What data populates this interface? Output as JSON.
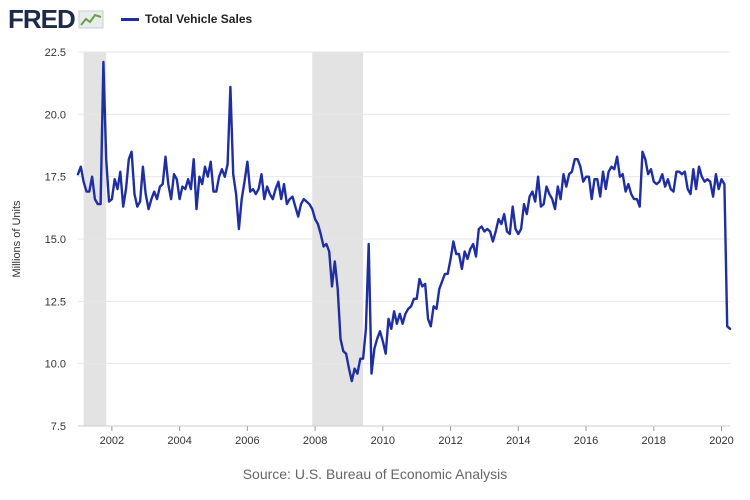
{
  "header": {
    "logo_text": "FRED"
  },
  "colors": {
    "series": "#1f2ea3",
    "recession": "#e3e3e3",
    "grid": "#e6e6e6",
    "axis_text": "#333333"
  },
  "footer": {
    "source": "Source: U.S. Bureau of Economic Analysis"
  },
  "chart_data": {
    "type": "line",
    "title": "",
    "xlabel": "",
    "ylabel": "Millions of Units",
    "ylim": [
      7.5,
      22.5
    ],
    "xlim": [
      "2001-01",
      "2020-04"
    ],
    "yticks": [
      "7.5",
      "10.0",
      "12.5",
      "15.0",
      "17.5",
      "20.0",
      "22.5"
    ],
    "xticks": [
      "2002",
      "2004",
      "2006",
      "2008",
      "2010",
      "2012",
      "2014",
      "2016",
      "2018",
      "2020"
    ],
    "grid": true,
    "legend": "top-left",
    "recessions": [
      {
        "start": "2001-03",
        "end": "2001-11"
      },
      {
        "start": "2007-12",
        "end": "2009-06"
      }
    ],
    "series": [
      {
        "name": "Total Vehicle Sales",
        "points": [
          [
            "2001-01",
            17.6
          ],
          [
            "2001-02",
            17.9
          ],
          [
            "2001-03",
            17.3
          ],
          [
            "2001-04",
            16.9
          ],
          [
            "2001-05",
            16.9
          ],
          [
            "2001-06",
            17.5
          ],
          [
            "2001-07",
            16.6
          ],
          [
            "2001-08",
            16.4
          ],
          [
            "2001-09",
            16.4
          ],
          [
            "2001-10",
            22.1
          ],
          [
            "2001-11",
            18.2
          ],
          [
            "2001-12",
            16.5
          ],
          [
            "2002-01",
            16.6
          ],
          [
            "2002-02",
            17.4
          ],
          [
            "2002-03",
            17.0
          ],
          [
            "2002-04",
            17.7
          ],
          [
            "2002-05",
            16.3
          ],
          [
            "2002-06",
            17.0
          ],
          [
            "2002-07",
            18.2
          ],
          [
            "2002-08",
            18.5
          ],
          [
            "2002-09",
            16.8
          ],
          [
            "2002-10",
            16.3
          ],
          [
            "2002-11",
            16.5
          ],
          [
            "2002-12",
            17.9
          ],
          [
            "2003-01",
            16.8
          ],
          [
            "2003-02",
            16.2
          ],
          [
            "2003-03",
            16.6
          ],
          [
            "2003-04",
            16.9
          ],
          [
            "2003-05",
            16.6
          ],
          [
            "2003-06",
            17.1
          ],
          [
            "2003-07",
            17.2
          ],
          [
            "2003-08",
            18.3
          ],
          [
            "2003-09",
            17.2
          ],
          [
            "2003-10",
            16.6
          ],
          [
            "2003-11",
            17.6
          ],
          [
            "2003-12",
            17.4
          ],
          [
            "2004-01",
            16.6
          ],
          [
            "2004-02",
            17.1
          ],
          [
            "2004-03",
            17.0
          ],
          [
            "2004-04",
            17.4
          ],
          [
            "2004-05",
            17.0
          ],
          [
            "2004-06",
            18.2
          ],
          [
            "2004-07",
            16.2
          ],
          [
            "2004-08",
            17.5
          ],
          [
            "2004-09",
            17.2
          ],
          [
            "2004-10",
            17.9
          ],
          [
            "2004-11",
            17.5
          ],
          [
            "2004-12",
            18.1
          ],
          [
            "2005-01",
            16.9
          ],
          [
            "2005-02",
            16.9
          ],
          [
            "2005-03",
            17.5
          ],
          [
            "2005-04",
            17.8
          ],
          [
            "2005-05",
            17.5
          ],
          [
            "2005-06",
            18.0
          ],
          [
            "2005-07",
            21.1
          ],
          [
            "2005-08",
            17.6
          ],
          [
            "2005-09",
            16.8
          ],
          [
            "2005-10",
            15.4
          ],
          [
            "2005-11",
            16.6
          ],
          [
            "2005-12",
            17.3
          ],
          [
            "2006-01",
            18.1
          ],
          [
            "2006-02",
            16.9
          ],
          [
            "2006-03",
            17.0
          ],
          [
            "2006-04",
            16.8
          ],
          [
            "2006-05",
            17.0
          ],
          [
            "2006-06",
            17.6
          ],
          [
            "2006-07",
            16.6
          ],
          [
            "2006-08",
            17.1
          ],
          [
            "2006-09",
            16.8
          ],
          [
            "2006-10",
            16.6
          ],
          [
            "2006-11",
            17.0
          ],
          [
            "2006-12",
            17.3
          ],
          [
            "2007-01",
            16.6
          ],
          [
            "2007-02",
            17.2
          ],
          [
            "2007-03",
            16.4
          ],
          [
            "2007-04",
            16.6
          ],
          [
            "2007-05",
            16.7
          ],
          [
            "2007-06",
            16.3
          ],
          [
            "2007-07",
            15.9
          ],
          [
            "2007-08",
            16.4
          ],
          [
            "2007-09",
            16.6
          ],
          [
            "2007-10",
            16.5
          ],
          [
            "2007-11",
            16.4
          ],
          [
            "2007-12",
            16.2
          ],
          [
            "2008-01",
            15.8
          ],
          [
            "2008-02",
            15.6
          ],
          [
            "2008-03",
            15.2
          ],
          [
            "2008-04",
            14.7
          ],
          [
            "2008-05",
            14.8
          ],
          [
            "2008-06",
            14.5
          ],
          [
            "2008-07",
            13.1
          ],
          [
            "2008-08",
            14.1
          ],
          [
            "2008-09",
            13.0
          ],
          [
            "2008-10",
            11.0
          ],
          [
            "2008-11",
            10.5
          ],
          [
            "2008-12",
            10.4
          ],
          [
            "2009-01",
            9.8
          ],
          [
            "2009-02",
            9.3
          ],
          [
            "2009-03",
            9.8
          ],
          [
            "2009-04",
            9.6
          ],
          [
            "2009-05",
            10.2
          ],
          [
            "2009-06",
            10.2
          ],
          [
            "2009-07",
            11.4
          ],
          [
            "2009-08",
            14.8
          ],
          [
            "2009-09",
            9.6
          ],
          [
            "2009-10",
            10.6
          ],
          [
            "2009-11",
            11.0
          ],
          [
            "2009-12",
            11.3
          ],
          [
            "2010-01",
            10.9
          ],
          [
            "2010-02",
            10.4
          ],
          [
            "2010-03",
            11.8
          ],
          [
            "2010-04",
            11.4
          ],
          [
            "2010-05",
            12.1
          ],
          [
            "2010-06",
            11.6
          ],
          [
            "2010-07",
            12.0
          ],
          [
            "2010-08",
            11.6
          ],
          [
            "2010-09",
            12.0
          ],
          [
            "2010-10",
            12.2
          ],
          [
            "2010-11",
            12.3
          ],
          [
            "2010-12",
            12.6
          ],
          [
            "2011-01",
            12.6
          ],
          [
            "2011-02",
            13.4
          ],
          [
            "2011-03",
            13.1
          ],
          [
            "2011-04",
            13.2
          ],
          [
            "2011-05",
            11.8
          ],
          [
            "2011-06",
            11.5
          ],
          [
            "2011-07",
            12.3
          ],
          [
            "2011-08",
            12.2
          ],
          [
            "2011-09",
            13.0
          ],
          [
            "2011-10",
            13.3
          ],
          [
            "2011-11",
            13.6
          ],
          [
            "2011-12",
            13.6
          ],
          [
            "2012-01",
            14.2
          ],
          [
            "2012-02",
            14.9
          ],
          [
            "2012-03",
            14.4
          ],
          [
            "2012-04",
            14.4
          ],
          [
            "2012-05",
            13.8
          ],
          [
            "2012-06",
            14.5
          ],
          [
            "2012-07",
            14.2
          ],
          [
            "2012-08",
            14.6
          ],
          [
            "2012-09",
            14.8
          ],
          [
            "2012-10",
            14.3
          ],
          [
            "2012-11",
            15.4
          ],
          [
            "2012-12",
            15.5
          ],
          [
            "2013-01",
            15.3
          ],
          [
            "2013-02",
            15.4
          ],
          [
            "2013-03",
            15.3
          ],
          [
            "2013-04",
            14.9
          ],
          [
            "2013-05",
            15.3
          ],
          [
            "2013-06",
            15.8
          ],
          [
            "2013-07",
            15.6
          ],
          [
            "2013-08",
            16.0
          ],
          [
            "2013-09",
            15.3
          ],
          [
            "2013-10",
            15.2
          ],
          [
            "2013-11",
            16.3
          ],
          [
            "2013-12",
            15.4
          ],
          [
            "2014-01",
            15.2
          ],
          [
            "2014-02",
            15.4
          ],
          [
            "2014-03",
            16.4
          ],
          [
            "2014-04",
            16.0
          ],
          [
            "2014-05",
            16.7
          ],
          [
            "2014-06",
            16.9
          ],
          [
            "2014-07",
            16.5
          ],
          [
            "2014-08",
            17.5
          ],
          [
            "2014-09",
            16.3
          ],
          [
            "2014-10",
            16.4
          ],
          [
            "2014-11",
            17.1
          ],
          [
            "2014-12",
            16.8
          ],
          [
            "2015-01",
            16.6
          ],
          [
            "2015-02",
            16.2
          ],
          [
            "2015-03",
            17.1
          ],
          [
            "2015-04",
            16.6
          ],
          [
            "2015-05",
            17.6
          ],
          [
            "2015-06",
            17.1
          ],
          [
            "2015-07",
            17.6
          ],
          [
            "2015-08",
            17.7
          ],
          [
            "2015-09",
            18.2
          ],
          [
            "2015-10",
            18.2
          ],
          [
            "2015-11",
            17.9
          ],
          [
            "2015-12",
            17.3
          ],
          [
            "2016-01",
            17.5
          ],
          [
            "2016-02",
            17.5
          ],
          [
            "2016-03",
            16.6
          ],
          [
            "2016-04",
            17.4
          ],
          [
            "2016-05",
            17.4
          ],
          [
            "2016-06",
            16.7
          ],
          [
            "2016-07",
            17.7
          ],
          [
            "2016-08",
            17.0
          ],
          [
            "2016-09",
            17.7
          ],
          [
            "2016-10",
            17.9
          ],
          [
            "2016-11",
            17.8
          ],
          [
            "2016-12",
            18.3
          ],
          [
            "2017-01",
            17.5
          ],
          [
            "2017-02",
            17.6
          ],
          [
            "2017-03",
            16.9
          ],
          [
            "2017-04",
            17.2
          ],
          [
            "2017-05",
            16.8
          ],
          [
            "2017-06",
            16.6
          ],
          [
            "2017-07",
            16.6
          ],
          [
            "2017-08",
            16.3
          ],
          [
            "2017-09",
            18.5
          ],
          [
            "2017-10",
            18.2
          ],
          [
            "2017-11",
            17.6
          ],
          [
            "2017-12",
            17.8
          ],
          [
            "2018-01",
            17.3
          ],
          [
            "2018-02",
            17.2
          ],
          [
            "2018-03",
            17.3
          ],
          [
            "2018-04",
            17.6
          ],
          [
            "2018-05",
            17.1
          ],
          [
            "2018-06",
            17.4
          ],
          [
            "2018-07",
            17.0
          ],
          [
            "2018-08",
            16.9
          ],
          [
            "2018-09",
            17.7
          ],
          [
            "2018-10",
            17.7
          ],
          [
            "2018-11",
            17.6
          ],
          [
            "2018-12",
            17.7
          ],
          [
            "2019-01",
            17.0
          ],
          [
            "2019-02",
            16.8
          ],
          [
            "2019-03",
            17.8
          ],
          [
            "2019-04",
            17.0
          ],
          [
            "2019-05",
            17.9
          ],
          [
            "2019-06",
            17.5
          ],
          [
            "2019-07",
            17.3
          ],
          [
            "2019-08",
            17.4
          ],
          [
            "2019-09",
            17.3
          ],
          [
            "2019-10",
            16.7
          ],
          [
            "2019-11",
            17.6
          ],
          [
            "2019-12",
            17.0
          ],
          [
            "2020-01",
            17.4
          ],
          [
            "2020-02",
            17.2
          ],
          [
            "2020-03",
            11.5
          ],
          [
            "2020-04",
            11.4
          ]
        ]
      }
    ]
  }
}
